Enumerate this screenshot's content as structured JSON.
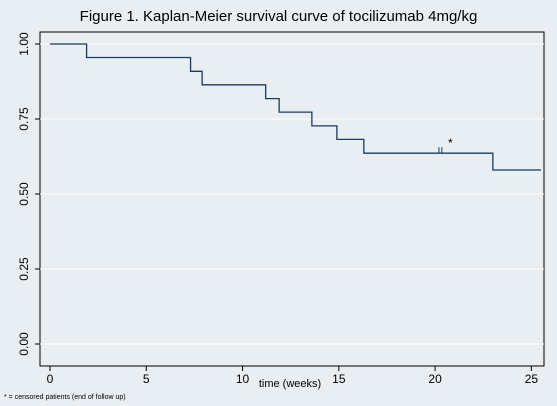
{
  "chart_data": {
    "type": "line",
    "title": "Figure 1. Kaplan-Meier survival curve of tocilizumab 4mg/kg",
    "xlabel": "time (weeks)",
    "ylabel": "",
    "xlim": [
      0,
      25.5
    ],
    "ylim": [
      0,
      1.0
    ],
    "x_ticks": [
      0,
      5,
      10,
      15,
      20,
      25
    ],
    "x_tick_labels": [
      "0",
      "5",
      "10",
      "15",
      "20",
      "25"
    ],
    "y_ticks": [
      0,
      0.25,
      0.5,
      0.75,
      1.0
    ],
    "y_tick_labels": [
      "0.00",
      "0.25",
      "0.50",
      "0.75",
      "1.00"
    ],
    "grid_y": true,
    "series": [
      {
        "step": true,
        "color": "#1c3a5e",
        "x": [
          0,
          1.9,
          7.3,
          7.9,
          11.2,
          11.9,
          13.6,
          14.9,
          16.3,
          23.0,
          25.5
        ],
        "y": [
          1.0,
          0.955,
          0.909,
          0.864,
          0.818,
          0.773,
          0.727,
          0.682,
          0.636,
          0.58,
          0.58
        ]
      }
    ],
    "censored": [
      {
        "x": 20.2,
        "y": 0.636
      },
      {
        "x": 20.35,
        "y": 0.636
      }
    ],
    "annotation": "*",
    "footnote": "* = censored patients (end of follow up)"
  }
}
